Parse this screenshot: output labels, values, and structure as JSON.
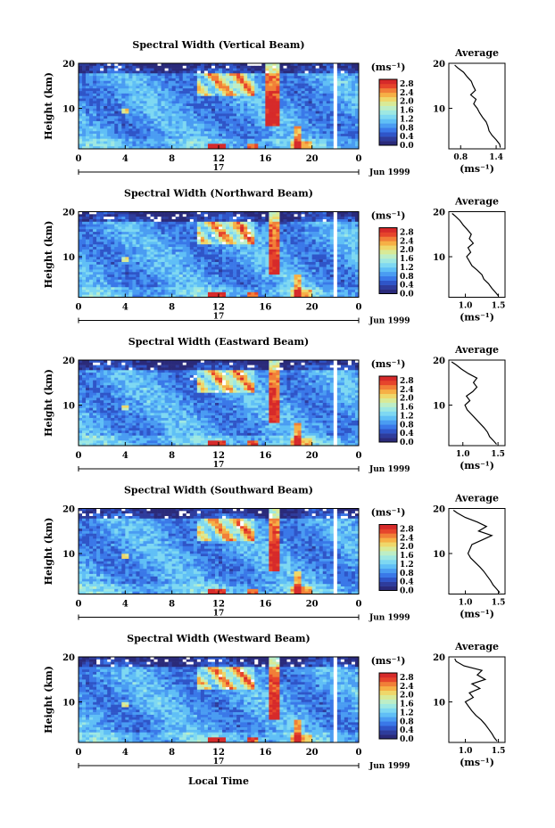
{
  "chart_data": {
    "type": "heatmap",
    "xlabel": "Local Time",
    "date_label": "Jun 1999",
    "day_label": "17",
    "x_ticks": [
      "0",
      "4",
      "8",
      "12",
      "16",
      "20",
      "0"
    ],
    "y_label": "Height (km)",
    "y_ticks": [
      "20",
      "10"
    ],
    "ylim": [
      1,
      20
    ],
    "xlim": [
      0,
      24
    ],
    "colorbar": {
      "label": "(ms⁻¹)",
      "ticks": [
        "2.8",
        "2.4",
        "2.0",
        "1.6",
        "1.2",
        "0.8",
        "0.4",
        "0.0"
      ],
      "range": [
        0,
        3.0
      ],
      "colors": [
        "#2a2a7a",
        "#2e3c9c",
        "#2f55c8",
        "#3a78e8",
        "#4a9cf2",
        "#60bff6",
        "#7ed8f2",
        "#9ee8e2",
        "#bdeec6",
        "#d9ea96",
        "#efd76a",
        "#f6b046",
        "#f17f38",
        "#e6452c",
        "#d62a2a"
      ]
    },
    "panels": [
      {
        "title": "Spectral Width (Vertical Beam)",
        "avg_title": "Average",
        "avg_xticks": [
          "0.8",
          "1.4"
        ],
        "avg_xvals": [
          0.8,
          1.4
        ],
        "avg_xlim": [
          0.6,
          1.55
        ],
        "avg_xlabel": "(ms⁻¹)",
        "avg_profile": [
          [
            1.47,
            1.3
          ],
          [
            1.46,
            2
          ],
          [
            1.4,
            3
          ],
          [
            1.33,
            4
          ],
          [
            1.28,
            5
          ],
          [
            1.26,
            6
          ],
          [
            1.23,
            7
          ],
          [
            1.17,
            8
          ],
          [
            1.12,
            9
          ],
          [
            1.08,
            10
          ],
          [
            1.02,
            11
          ],
          [
            1.06,
            12
          ],
          [
            0.97,
            13
          ],
          [
            1.05,
            14
          ],
          [
            1.01,
            15
          ],
          [
            0.98,
            16
          ],
          [
            0.91,
            17
          ],
          [
            0.85,
            18
          ],
          [
            0.75,
            19
          ],
          [
            0.7,
            19.6
          ]
        ]
      },
      {
        "title": "Spectral Width (Northward Beam)",
        "avg_title": "Average",
        "avg_xticks": [
          "1.0",
          "1.5"
        ],
        "avg_xvals": [
          1.0,
          1.5
        ],
        "avg_xlim": [
          0.75,
          1.6
        ],
        "avg_xlabel": "(ms⁻¹)",
        "avg_profile": [
          [
            1.5,
            1.3
          ],
          [
            1.46,
            2
          ],
          [
            1.4,
            3
          ],
          [
            1.35,
            4
          ],
          [
            1.28,
            5
          ],
          [
            1.25,
            6
          ],
          [
            1.18,
            7
          ],
          [
            1.1,
            8
          ],
          [
            1.06,
            9
          ],
          [
            1.02,
            10
          ],
          [
            1.08,
            11
          ],
          [
            1.04,
            12
          ],
          [
            1.12,
            13
          ],
          [
            1.06,
            14
          ],
          [
            1.09,
            15
          ],
          [
            1.03,
            16
          ],
          [
            0.97,
            17
          ],
          [
            0.92,
            18
          ],
          [
            0.85,
            19
          ],
          [
            0.8,
            19.6
          ]
        ]
      },
      {
        "title": "Spectral Width (Eastward Beam)",
        "avg_title": "Average",
        "avg_xticks": [
          "1.0",
          "1.5"
        ],
        "avg_xvals": [
          1.0,
          1.5
        ],
        "avg_xlim": [
          0.8,
          1.6
        ],
        "avg_xlabel": "(ms⁻¹)",
        "avg_profile": [
          [
            1.48,
            1.3
          ],
          [
            1.44,
            2
          ],
          [
            1.38,
            3
          ],
          [
            1.35,
            4
          ],
          [
            1.3,
            5
          ],
          [
            1.24,
            6
          ],
          [
            1.18,
            7
          ],
          [
            1.12,
            8
          ],
          [
            1.06,
            9
          ],
          [
            1.03,
            10
          ],
          [
            1.1,
            11
          ],
          [
            1.05,
            12
          ],
          [
            1.14,
            13
          ],
          [
            1.2,
            14
          ],
          [
            1.15,
            15
          ],
          [
            1.2,
            16
          ],
          [
            1.08,
            17
          ],
          [
            0.98,
            18
          ],
          [
            0.9,
            19
          ],
          [
            0.84,
            19.6
          ]
        ]
      },
      {
        "title": "Spectral Width (Southward Beam)",
        "avg_title": "Average",
        "avg_xticks": [
          "1.0",
          "1.5"
        ],
        "avg_xvals": [
          1.0,
          1.5
        ],
        "avg_xlim": [
          0.75,
          1.6
        ],
        "avg_xlabel": "(ms⁻¹)",
        "avg_profile": [
          [
            1.52,
            1.3
          ],
          [
            1.48,
            2
          ],
          [
            1.42,
            3
          ],
          [
            1.38,
            4
          ],
          [
            1.33,
            5
          ],
          [
            1.28,
            6
          ],
          [
            1.22,
            7
          ],
          [
            1.15,
            8
          ],
          [
            1.08,
            9
          ],
          [
            1.04,
            10
          ],
          [
            1.07,
            11
          ],
          [
            1.1,
            12
          ],
          [
            1.25,
            13
          ],
          [
            1.4,
            14
          ],
          [
            1.2,
            15
          ],
          [
            1.32,
            16
          ],
          [
            1.18,
            17
          ],
          [
            1.0,
            18
          ],
          [
            0.88,
            19
          ],
          [
            0.82,
            19.6
          ]
        ]
      },
      {
        "title": "Spectral Width (Westward Beam)",
        "avg_title": "Average",
        "avg_xticks": [
          "1.0",
          "1.5"
        ],
        "avg_xvals": [
          1.0,
          1.5
        ],
        "avg_xlim": [
          0.75,
          1.6
        ],
        "avg_xlabel": "(ms⁻¹)",
        "avg_profile": [
          [
            1.48,
            1.3
          ],
          [
            1.44,
            2
          ],
          [
            1.4,
            3
          ],
          [
            1.35,
            4
          ],
          [
            1.3,
            5
          ],
          [
            1.24,
            6
          ],
          [
            1.16,
            7
          ],
          [
            1.1,
            8
          ],
          [
            1.05,
            9
          ],
          [
            1.0,
            10
          ],
          [
            1.12,
            11
          ],
          [
            1.06,
            12
          ],
          [
            1.22,
            13
          ],
          [
            1.1,
            14
          ],
          [
            1.3,
            15
          ],
          [
            1.18,
            16
          ],
          [
            1.25,
            17
          ],
          [
            0.98,
            18
          ],
          [
            0.86,
            19
          ],
          [
            0.84,
            19.6
          ]
        ]
      }
    ]
  }
}
